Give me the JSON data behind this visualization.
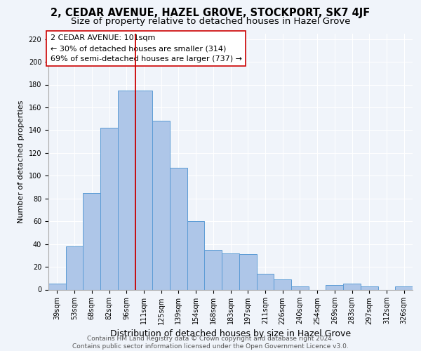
{
  "title": "2, CEDAR AVENUE, HAZEL GROVE, STOCKPORT, SK7 4JF",
  "subtitle": "Size of property relative to detached houses in Hazel Grove",
  "xlabel": "Distribution of detached houses by size in Hazel Grove",
  "ylabel": "Number of detached properties",
  "footer_lines": [
    "Contains HM Land Registry data © Crown copyright and database right 2024.",
    "Contains public sector information licensed under the Open Government Licence v3.0."
  ],
  "annotation_title": "2 CEDAR AVENUE: 101sqm",
  "annotation_line1": "← 30% of detached houses are smaller (314)",
  "annotation_line2": "69% of semi-detached houses are larger (737) →",
  "bar_labels": [
    "39sqm",
    "53sqm",
    "68sqm",
    "82sqm",
    "96sqm",
    "111sqm",
    "125sqm",
    "139sqm",
    "154sqm",
    "168sqm",
    "183sqm",
    "197sqm",
    "211sqm",
    "226sqm",
    "240sqm",
    "254sqm",
    "269sqm",
    "283sqm",
    "297sqm",
    "312sqm",
    "326sqm"
  ],
  "bar_values": [
    5,
    38,
    85,
    142,
    175,
    175,
    148,
    107,
    60,
    35,
    32,
    31,
    14,
    9,
    3,
    0,
    4,
    5,
    3,
    0,
    3
  ],
  "bar_color": "#aec6e8",
  "bar_edge_color": "#5b9bd5",
  "vline_x": 4.5,
  "vline_color": "#cc0000",
  "annotation_box_color": "#ffffff",
  "annotation_box_edge": "#cc0000",
  "ylim": [
    0,
    225
  ],
  "yticks": [
    0,
    20,
    40,
    60,
    80,
    100,
    120,
    140,
    160,
    180,
    200,
    220
  ],
  "background_color": "#f0f4fa",
  "grid_color": "#ffffff",
  "title_fontsize": 10.5,
  "subtitle_fontsize": 9.5,
  "xlabel_fontsize": 9,
  "ylabel_fontsize": 8,
  "tick_fontsize": 7,
  "annotation_fontsize": 8,
  "footer_fontsize": 6.5
}
